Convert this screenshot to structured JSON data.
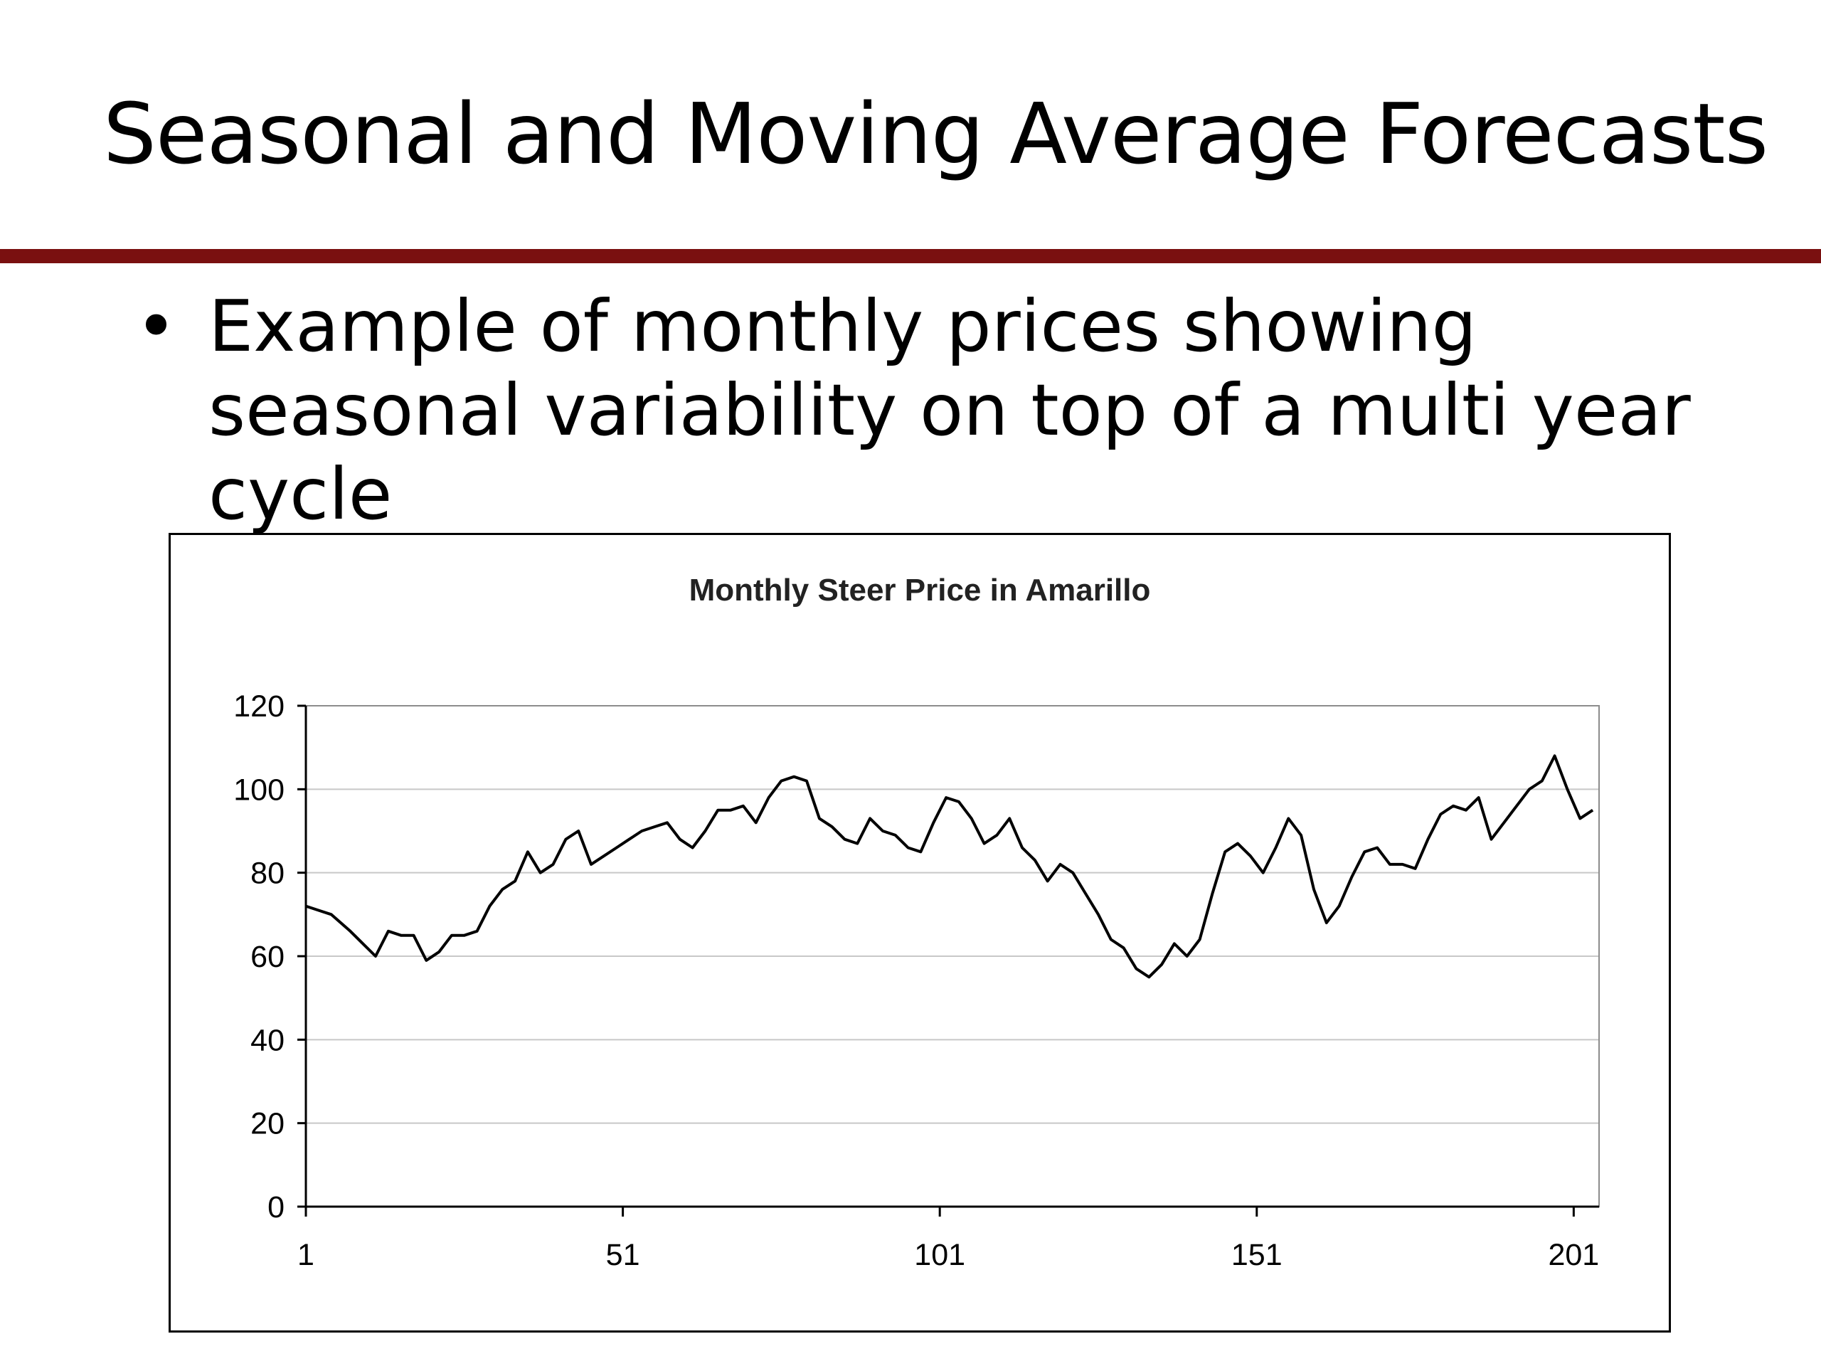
{
  "slide": {
    "title": "Seasonal and Moving Average Forecasts",
    "accent_color": "#7a1010",
    "bullets": [
      {
        "marker": "•",
        "text": "Example of monthly prices showing seasonal variability on top of a multi year cycle"
      }
    ]
  },
  "chart_data": {
    "type": "line",
    "title": "Monthly Steer Price in Amarillo",
    "xlabel": "",
    "ylabel": "",
    "xlim": [
      1,
      205
    ],
    "ylim": [
      0,
      120
    ],
    "x_ticks": [
      1,
      51,
      101,
      151,
      201
    ],
    "y_ticks": [
      0,
      20,
      40,
      60,
      80,
      100,
      120
    ],
    "grid": "horizontal",
    "legend": "none",
    "line_color": "#000000",
    "series": [
      {
        "x": [
          1,
          3,
          5,
          8,
          10,
          12,
          14,
          16,
          18,
          20,
          22,
          24,
          26,
          28,
          30,
          32,
          34,
          36,
          38,
          40,
          42,
          44,
          46,
          48,
          50,
          52,
          54,
          56,
          58,
          60,
          62,
          64,
          66,
          68,
          70,
          72,
          74,
          76,
          78,
          80,
          82,
          84,
          86,
          88,
          90,
          92,
          94,
          96,
          98,
          100,
          102,
          104,
          106,
          108,
          110,
          112,
          114,
          116,
          118,
          120,
          122,
          124,
          126,
          128,
          130,
          132,
          134,
          136,
          138,
          140,
          142,
          144,
          146,
          148,
          150,
          152,
          154,
          156,
          158,
          160,
          162,
          164,
          166,
          168,
          170,
          172,
          174,
          176,
          178,
          180,
          182,
          184,
          186,
          188,
          190,
          192,
          194,
          196,
          198,
          200,
          202,
          204
        ],
        "values": [
          72,
          71,
          70,
          66,
          63,
          60,
          66,
          65,
          65,
          59,
          61,
          65,
          65,
          66,
          72,
          76,
          78,
          85,
          80,
          82,
          88,
          90,
          82,
          84,
          86,
          88,
          90,
          91,
          92,
          88,
          86,
          90,
          95,
          95,
          96,
          92,
          98,
          102,
          103,
          102,
          93,
          91,
          88,
          87,
          93,
          90,
          89,
          86,
          85,
          92,
          98,
          97,
          93,
          87,
          89,
          93,
          86,
          83,
          78,
          82,
          80,
          75,
          70,
          64,
          62,
          57,
          55,
          58,
          63,
          60,
          64,
          75,
          85,
          87,
          84,
          80,
          86,
          93,
          89,
          76,
          68,
          72,
          79,
          85,
          86,
          82,
          82,
          81,
          88,
          94,
          96,
          95,
          98,
          88,
          92,
          96,
          100,
          102,
          108,
          100,
          93,
          95
        ]
      }
    ]
  }
}
